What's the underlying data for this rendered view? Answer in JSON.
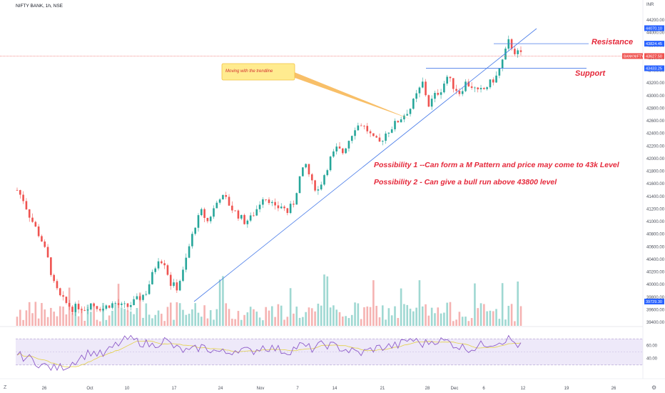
{
  "header": {
    "symbol_title": "NIFTY BANK, 1h, NSE"
  },
  "currency": "INR",
  "colors": {
    "up": "#26a69a",
    "down": "#ef5350",
    "trend": "#4a7de9",
    "annotation": "#e5283a",
    "rsi": "#8e5cc9",
    "rsi_ma": "#e4d146"
  },
  "price_axis": {
    "ticks": [
      "44200.00",
      "44000.00",
      "43800.00",
      "43600.00",
      "43400.00",
      "43200.00",
      "43000.00",
      "42800.00",
      "42600.00",
      "42400.00",
      "42200.00",
      "42000.00",
      "41800.00",
      "41600.00",
      "41400.00",
      "41200.00",
      "41000.00",
      "40800.00",
      "40600.00",
      "40400.00",
      "40200.00",
      "40000.00",
      "39800.00",
      "39600.00",
      "39400.00"
    ]
  },
  "price_badges": [
    {
      "label": "44070.10",
      "value": 44070.1,
      "color": "#2962ff"
    },
    {
      "label": "43824.45",
      "value": 43824.45,
      "color": "#2962ff"
    },
    {
      "label": "43627.50",
      "value": 43627.5,
      "color": "#ef5350"
    },
    {
      "label": "43433.25",
      "value": 43433.25,
      "color": "#2962ff"
    },
    {
      "label": "39729.30",
      "value": 39729.3,
      "color": "#2962ff"
    }
  ],
  "symbol_badge": "BANKNIFTY",
  "time_axis": {
    "labels": [
      "26",
      "Oct",
      "10",
      "17",
      "24",
      "Nov",
      "7",
      "14",
      "21",
      "28",
      "Dec",
      "6",
      "12",
      "19",
      "26"
    ]
  },
  "rsi_axis": {
    "ticks": [
      "60.00",
      "40.00"
    ]
  },
  "annotations": {
    "callout": "Moving with the trendline",
    "resistance": "Resistance",
    "support": "Support",
    "possibility_1": "Possibility 1 --Can form a M Pattern and price may come to 43k Level",
    "possibility_2": "Possibility 2 - Can give a bull run above 43800 level"
  },
  "chart_data": {
    "type": "candlestick",
    "title": "NIFTY BANK, 1h, NSE",
    "ylim": [
      39400,
      44300
    ],
    "levels": {
      "resistance": 43824.45,
      "support": 43433.25,
      "last": 43627.5
    },
    "price_path": [
      [
        0,
        41500
      ],
      [
        2,
        41350
      ],
      [
        4,
        41100
      ],
      [
        6,
        40900
      ],
      [
        8,
        40700
      ],
      [
        10,
        40400
      ],
      [
        12,
        40000
      ],
      [
        14,
        39800
      ],
      [
        16,
        39700
      ],
      [
        18,
        39620
      ],
      [
        20,
        39650
      ],
      [
        22,
        39620
      ],
      [
        24,
        39700
      ],
      [
        26,
        39650
      ],
      [
        28,
        39620
      ],
      [
        30,
        39680
      ],
      [
        32,
        39700
      ],
      [
        34,
        39650
      ],
      [
        36,
        39650
      ],
      [
        38,
        39720
      ],
      [
        40,
        39790
      ],
      [
        42,
        39880
      ],
      [
        44,
        40150
      ],
      [
        46,
        40420
      ],
      [
        48,
        40350
      ],
      [
        50,
        40010
      ],
      [
        52,
        39950
      ],
      [
        54,
        40200
      ],
      [
        56,
        40600
      ],
      [
        58,
        40950
      ],
      [
        60,
        41150
      ],
      [
        62,
        41000
      ],
      [
        64,
        41200
      ],
      [
        66,
        41400
      ],
      [
        68,
        41350
      ],
      [
        70,
        41200
      ],
      [
        72,
        41100
      ],
      [
        74,
        41000
      ],
      [
        76,
        41050
      ],
      [
        78,
        41200
      ],
      [
        80,
        41400
      ],
      [
        82,
        41350
      ],
      [
        84,
        41200
      ],
      [
        86,
        41250
      ],
      [
        88,
        41150
      ],
      [
        90,
        41300
      ],
      [
        92,
        41700
      ],
      [
        94,
        41900
      ],
      [
        96,
        41600
      ],
      [
        98,
        41500
      ],
      [
        100,
        41750
      ],
      [
        102,
        42000
      ],
      [
        104,
        42150
      ],
      [
        106,
        42100
      ],
      [
        108,
        42300
      ],
      [
        110,
        42500
      ],
      [
        112,
        42550
      ],
      [
        114,
        42450
      ],
      [
        116,
        42300
      ],
      [
        118,
        42250
      ],
      [
        120,
        42400
      ],
      [
        122,
        42500
      ],
      [
        124,
        42600
      ],
      [
        126,
        42700
      ],
      [
        128,
        42800
      ],
      [
        130,
        43000
      ],
      [
        132,
        43200
      ],
      [
        134,
        42850
      ],
      [
        136,
        43000
      ],
      [
        138,
        43100
      ],
      [
        140,
        43300
      ],
      [
        142,
        43150
      ],
      [
        144,
        43050
      ],
      [
        146,
        43200
      ],
      [
        148,
        43150
      ],
      [
        150,
        43050
      ],
      [
        152,
        43100
      ],
      [
        154,
        43200
      ],
      [
        156,
        43300
      ],
      [
        158,
        43550
      ],
      [
        160,
        43850
      ],
      [
        162,
        43700
      ],
      [
        164,
        43650
      ]
    ],
    "volume_seed": 7,
    "rsi_path": [
      [
        0,
        45
      ],
      [
        4,
        40
      ],
      [
        8,
        30
      ],
      [
        12,
        25
      ],
      [
        16,
        28
      ],
      [
        20,
        40
      ],
      [
        24,
        50
      ],
      [
        28,
        45
      ],
      [
        32,
        60
      ],
      [
        36,
        70
      ],
      [
        40,
        65
      ],
      [
        44,
        60
      ],
      [
        48,
        68
      ],
      [
        52,
        55
      ],
      [
        56,
        50
      ],
      [
        60,
        58
      ],
      [
        64,
        52
      ],
      [
        68,
        48
      ],
      [
        72,
        55
      ],
      [
        76,
        50
      ],
      [
        80,
        58
      ],
      [
        84,
        55
      ],
      [
        88,
        50
      ],
      [
        92,
        60
      ],
      [
        96,
        55
      ],
      [
        100,
        62
      ],
      [
        104,
        58
      ],
      [
        108,
        52
      ],
      [
        112,
        48
      ],
      [
        116,
        55
      ],
      [
        120,
        58
      ],
      [
        124,
        60
      ],
      [
        128,
        70
      ],
      [
        132,
        62
      ],
      [
        136,
        68
      ],
      [
        140,
        66
      ],
      [
        144,
        58
      ],
      [
        148,
        55
      ],
      [
        152,
        62
      ],
      [
        156,
        65
      ],
      [
        160,
        70
      ],
      [
        164,
        58
      ]
    ],
    "rsi_ylim": [
      20,
      80
    ],
    "rsi_band": [
      30,
      70
    ]
  }
}
